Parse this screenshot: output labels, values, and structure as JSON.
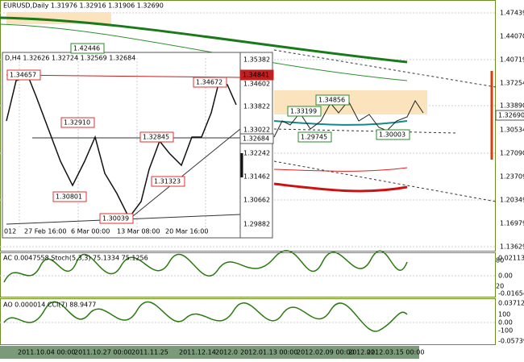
{
  "main": {
    "header": "EURUSD,Daily  1.31976 1.32916 1.31906 1.32690",
    "axis": [
      "1.47439",
      "1.44070",
      "1.40719",
      "1.37254",
      "1.33890",
      "1.30534",
      "1.27090",
      "1.23709",
      "1.20349",
      "1.16979",
      "1.13629"
    ],
    "current": "1.32690",
    "labels": [
      "1.42446",
      "1.34856",
      "1.33199",
      "1.29745",
      "1.30003"
    ]
  },
  "inset": {
    "header": "D,H4  1.32626 1.32724 1.32569 1.32684",
    "axis": [
      "1.35382",
      "1.34602",
      "1.33822",
      "1.33022",
      "1.32242",
      "1.31462",
      "1.30662",
      "1.29882"
    ],
    "resistance": "1.34841",
    "current": "1.32684",
    "labels": [
      "1.34657",
      "1.34672",
      "1.32910",
      "1.32845",
      "1.30801",
      "1.31323",
      "1.30039"
    ],
    "time": [
      "012",
      "27 Feb 16:00",
      "6 Mar 00:00",
      "13 Mar 08:00",
      "20 Mar 16:00"
    ]
  },
  "ac": {
    "header": "AC 0.0047558  Stoch(5,3,3) 75.1334 75.1256",
    "axis": [
      "0.02113",
      "0.00",
      "-0.01654"
    ],
    "levels": [
      "80",
      "20"
    ]
  },
  "ao": {
    "header": "AO 0.000014  CCI(7) 88.9477",
    "axis": [
      "0.03712",
      "100",
      "0.00",
      "-100",
      "-0.05739"
    ]
  },
  "time": [
    "2011.10.04 00:00",
    "2011.10.27 00:00",
    "2011.11.25",
    "2011.12.14",
    "2012.0",
    "2012.01.13 00:00",
    "2012.02.09 00:00",
    "2012.02.",
    "2012.03.15 00:00"
  ]
}
